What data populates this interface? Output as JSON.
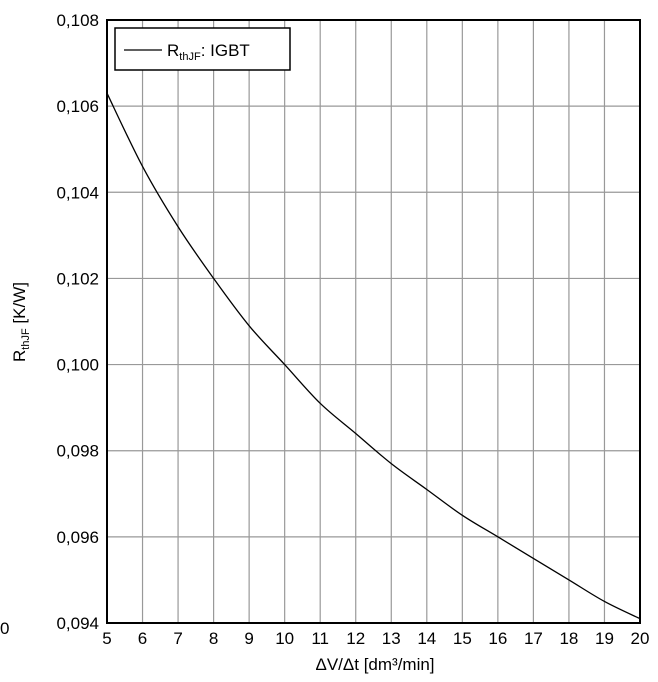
{
  "chart_data": {
    "type": "line",
    "title": "",
    "xlabel": "ΔV/Δt [dm³/min]",
    "ylabel": {
      "main": "R",
      "sub": "thJF",
      "rest": " [K/W]"
    },
    "xlim": [
      5,
      20
    ],
    "ylim": [
      0.094,
      0.108
    ],
    "x_ticks": [
      5,
      6,
      7,
      8,
      9,
      10,
      11,
      12,
      13,
      14,
      15,
      16,
      17,
      18,
      19,
      20
    ],
    "x_tick_labels": [
      "5",
      "6",
      "7",
      "8",
      "9",
      "10",
      "11",
      "12",
      "13",
      "14",
      "15",
      "16",
      "17",
      "18",
      "19",
      "20"
    ],
    "y_ticks": [
      0.094,
      0.096,
      0.098,
      0.1,
      0.102,
      0.104,
      0.106,
      0.108
    ],
    "y_tick_labels": [
      "0,094",
      "0,096",
      "0,098",
      "0,100",
      "0,102",
      "0,104",
      "0,106",
      "0,108"
    ],
    "edge_label": "0",
    "grid": true,
    "legend": {
      "placement": "top-left",
      "entries": [
        {
          "main": "R",
          "sub": "thJF",
          "rest": ": IGBT"
        }
      ]
    },
    "series": [
      {
        "color": "#000000",
        "x": [
          5,
          6,
          7,
          8,
          9,
          10,
          11,
          12,
          13,
          14,
          15,
          16,
          17,
          18,
          19,
          20
        ],
        "y": [
          0.1063,
          0.1046,
          0.1032,
          0.102,
          0.1009,
          0.1,
          0.0991,
          0.0984,
          0.0977,
          0.0971,
          0.0965,
          0.096,
          0.0955,
          0.095,
          0.0945,
          0.0941
        ]
      }
    ]
  }
}
